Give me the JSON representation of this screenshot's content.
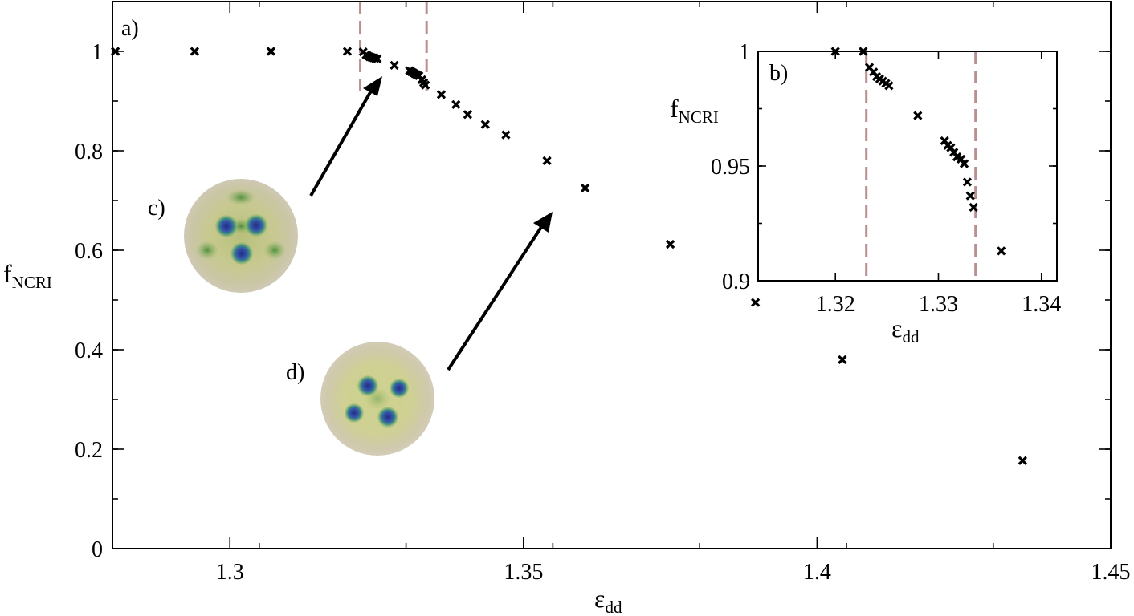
{
  "chart_data": [
    {
      "id": "main",
      "type": "scatter",
      "panel_label": "a)",
      "xlabel_base": "ε",
      "xlabel_sub": "dd",
      "ylabel_base": "f",
      "ylabel_sub": "NCRI",
      "xlim": [
        1.28,
        1.45
      ],
      "ylim": [
        0,
        1.1
      ],
      "xticks": [
        {
          "v": 1.3,
          "label": "1.3"
        },
        {
          "v": 1.35,
          "label": "1.35"
        },
        {
          "v": 1.4,
          "label": "1.4"
        },
        {
          "v": 1.45,
          "label": "1.45"
        }
      ],
      "yticks": [
        {
          "v": 0,
          "label": "0"
        },
        {
          "v": 0.2,
          "label": "0.2"
        },
        {
          "v": 0.4,
          "label": "0.4"
        },
        {
          "v": 0.6,
          "label": "0.6"
        },
        {
          "v": 0.8,
          "label": "0.8"
        },
        {
          "v": 1,
          "label": "1"
        }
      ],
      "x_minor_step": 0.025,
      "y_minor_step": 0.1,
      "dashed_vlines_x": [
        1.3222,
        1.3335
      ],
      "dashed_vline_range": [
        0.92,
        1.1
      ],
      "marker": "x",
      "points": [
        [
          1.2805,
          1.0
        ],
        [
          1.294,
          1.0
        ],
        [
          1.307,
          1.0
        ],
        [
          1.32,
          1.0
        ],
        [
          1.3227,
          0.999
        ],
        [
          1.3232,
          0.993
        ],
        [
          1.3235,
          0.991
        ],
        [
          1.3238,
          0.989
        ],
        [
          1.3241,
          0.988
        ],
        [
          1.3244,
          0.987
        ],
        [
          1.3247,
          0.986
        ],
        [
          1.3251,
          0.985
        ],
        [
          1.328,
          0.972
        ],
        [
          1.3306,
          0.961
        ],
        [
          1.3309,
          0.959
        ],
        [
          1.3312,
          0.957
        ],
        [
          1.3315,
          0.955
        ],
        [
          1.3318,
          0.953
        ],
        [
          1.3322,
          0.951
        ],
        [
          1.3327,
          0.943
        ],
        [
          1.333,
          0.937
        ],
        [
          1.3333,
          0.932
        ],
        [
          1.336,
          0.913
        ],
        [
          1.3385,
          0.893
        ],
        [
          1.3405,
          0.873
        ],
        [
          1.3435,
          0.853
        ],
        [
          1.347,
          0.832
        ],
        [
          1.354,
          0.78
        ],
        [
          1.3605,
          0.725
        ],
        [
          1.375,
          0.612
        ],
        [
          1.3895,
          0.495
        ],
        [
          1.4043,
          0.38
        ],
        [
          1.435,
          0.177
        ]
      ]
    },
    {
      "id": "inset",
      "type": "scatter",
      "panel_label": "b)",
      "xlabel_base": "ε",
      "xlabel_sub": "dd",
      "ylabel_base": "f",
      "ylabel_sub": "NCRI",
      "xlim": [
        1.3125,
        1.3415
      ],
      "ylim": [
        0.9,
        1.0
      ],
      "xticks": [
        {
          "v": 1.32,
          "label": "1.32"
        },
        {
          "v": 1.33,
          "label": "1.33"
        },
        {
          "v": 1.34,
          "label": "1.34"
        }
      ],
      "yticks": [
        {
          "v": 0.9,
          "label": "0.9"
        },
        {
          "v": 0.95,
          "label": "0.95"
        },
        {
          "v": 1.0,
          "label": "1"
        }
      ],
      "y_minor_step": 0.025,
      "dashed_vlines_x": [
        1.323,
        1.3336
      ],
      "marker": "x",
      "points": [
        [
          1.32,
          1.0
        ],
        [
          1.3227,
          1.0
        ],
        [
          1.3233,
          0.993
        ],
        [
          1.3237,
          0.991
        ],
        [
          1.324,
          0.989
        ],
        [
          1.3243,
          0.988
        ],
        [
          1.3246,
          0.987
        ],
        [
          1.3249,
          0.986
        ],
        [
          1.3252,
          0.985
        ],
        [
          1.328,
          0.972
        ],
        [
          1.3306,
          0.961
        ],
        [
          1.3309,
          0.959
        ],
        [
          1.3312,
          0.958
        ],
        [
          1.3315,
          0.956
        ],
        [
          1.3318,
          0.954
        ],
        [
          1.3322,
          0.953
        ],
        [
          1.3325,
          0.951
        ],
        [
          1.3328,
          0.943
        ],
        [
          1.3331,
          0.937
        ],
        [
          1.3334,
          0.932
        ],
        [
          1.3361,
          0.913
        ]
      ]
    }
  ],
  "annotations": {
    "c_label": "c)",
    "d_label": "d)"
  },
  "colors": {
    "dashed_line": "#b89090",
    "density_background": "#c8c9a8",
    "density_green": "#5f9a4a",
    "vortex_core": "#2c3d8f"
  }
}
